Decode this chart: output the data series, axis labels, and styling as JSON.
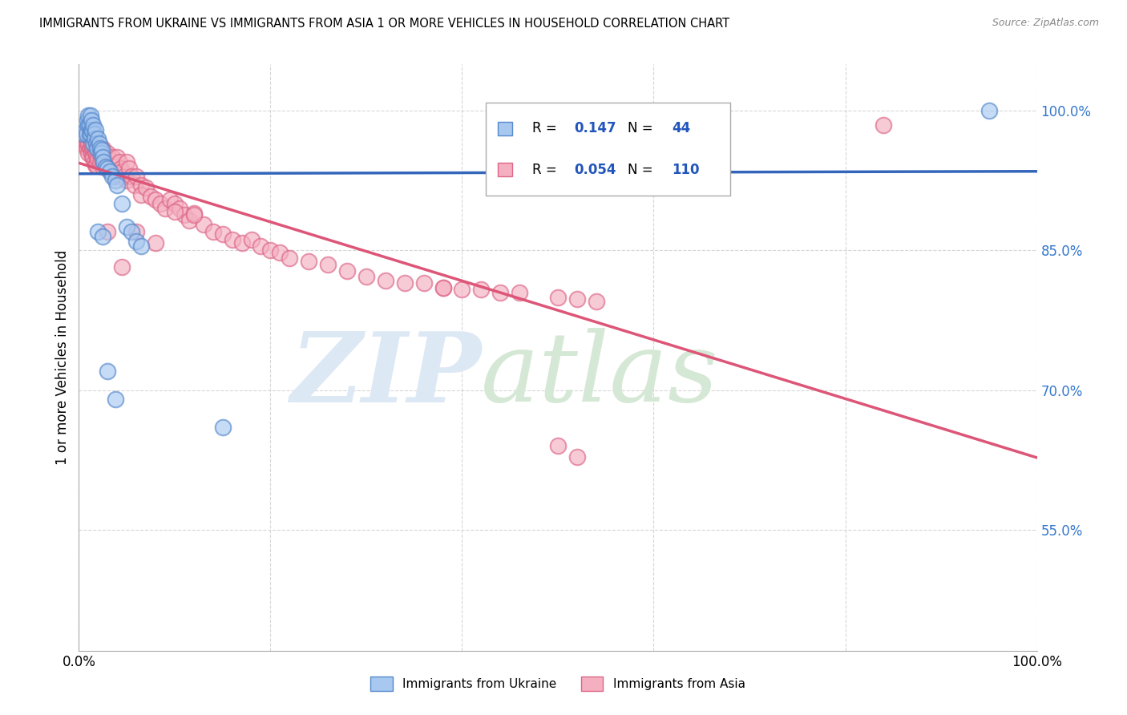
{
  "title": "IMMIGRANTS FROM UKRAINE VS IMMIGRANTS FROM ASIA 1 OR MORE VEHICLES IN HOUSEHOLD CORRELATION CHART",
  "source": "Source: ZipAtlas.com",
  "ylabel": "1 or more Vehicles in Household",
  "xlim": [
    0.0,
    1.0
  ],
  "ylim": [
    0.42,
    1.05
  ],
  "yticks": [
    0.55,
    0.7,
    0.85,
    1.0
  ],
  "ytick_labels": [
    "55.0%",
    "70.0%",
    "85.0%",
    "100.0%"
  ],
  "xticks": [
    0.0,
    0.2,
    0.4,
    0.6,
    0.8,
    1.0
  ],
  "xtick_labels": [
    "0.0%",
    "",
    "",
    "",
    "",
    "100.0%"
  ],
  "ukraine_R": 0.147,
  "ukraine_N": 44,
  "asia_R": 0.054,
  "asia_N": 110,
  "ukraine_color": "#a8c8f0",
  "asia_color": "#f4b0c0",
  "ukraine_edge_color": "#5588cc",
  "asia_edge_color": "#dd6688",
  "ukraine_line_color": "#3366bb",
  "asia_line_color": "#dd5577",
  "legend_ukraine": "Immigrants from Ukraine",
  "legend_asia": "Immigrants from Asia",
  "ukraine_x": [
    0.005,
    0.007,
    0.008,
    0.009,
    0.01,
    0.01,
    0.011,
    0.011,
    0.012,
    0.012,
    0.013,
    0.013,
    0.014,
    0.015,
    0.015,
    0.016,
    0.016,
    0.017,
    0.018,
    0.019,
    0.02,
    0.021,
    0.022,
    0.023,
    0.024,
    0.025,
    0.026,
    0.028,
    0.03,
    0.032,
    0.035,
    0.038,
    0.04,
    0.045,
    0.05,
    0.055,
    0.06,
    0.065,
    0.02,
    0.025,
    0.03,
    0.038,
    0.15,
    0.95
  ],
  "ukraine_y": [
    0.975,
    0.98,
    0.975,
    0.99,
    0.985,
    0.995,
    0.985,
    0.975,
    0.995,
    0.975,
    0.99,
    0.98,
    0.978,
    0.965,
    0.985,
    0.975,
    0.97,
    0.98,
    0.965,
    0.96,
    0.97,
    0.965,
    0.96,
    0.955,
    0.958,
    0.95,
    0.945,
    0.94,
    0.938,
    0.935,
    0.93,
    0.925,
    0.92,
    0.9,
    0.875,
    0.87,
    0.86,
    0.855,
    0.87,
    0.865,
    0.72,
    0.69,
    0.66,
    1.0
  ],
  "asia_x": [
    0.003,
    0.004,
    0.005,
    0.005,
    0.006,
    0.007,
    0.007,
    0.008,
    0.008,
    0.009,
    0.01,
    0.01,
    0.01,
    0.011,
    0.011,
    0.012,
    0.012,
    0.013,
    0.013,
    0.014,
    0.014,
    0.015,
    0.015,
    0.016,
    0.016,
    0.017,
    0.017,
    0.018,
    0.018,
    0.019,
    0.02,
    0.02,
    0.021,
    0.022,
    0.022,
    0.023,
    0.024,
    0.025,
    0.025,
    0.026,
    0.027,
    0.028,
    0.03,
    0.03,
    0.032,
    0.033,
    0.035,
    0.035,
    0.037,
    0.038,
    0.04,
    0.04,
    0.042,
    0.044,
    0.045,
    0.047,
    0.05,
    0.05,
    0.052,
    0.055,
    0.058,
    0.06,
    0.065,
    0.065,
    0.07,
    0.075,
    0.08,
    0.085,
    0.09,
    0.095,
    0.1,
    0.105,
    0.11,
    0.115,
    0.12,
    0.13,
    0.14,
    0.15,
    0.16,
    0.17,
    0.18,
    0.19,
    0.2,
    0.21,
    0.22,
    0.24,
    0.26,
    0.28,
    0.3,
    0.32,
    0.34,
    0.36,
    0.38,
    0.4,
    0.42,
    0.44,
    0.46,
    0.5,
    0.52,
    0.54,
    0.03,
    0.045,
    0.06,
    0.08,
    0.1,
    0.12,
    0.5,
    0.52,
    0.38,
    0.84
  ],
  "asia_y": [
    0.97,
    0.975,
    0.965,
    0.975,
    0.97,
    0.965,
    0.975,
    0.96,
    0.97,
    0.965,
    0.975,
    0.965,
    0.955,
    0.97,
    0.96,
    0.975,
    0.96,
    0.965,
    0.955,
    0.96,
    0.95,
    0.96,
    0.95,
    0.958,
    0.945,
    0.955,
    0.942,
    0.955,
    0.942,
    0.95,
    0.96,
    0.948,
    0.955,
    0.96,
    0.945,
    0.955,
    0.948,
    0.96,
    0.94,
    0.95,
    0.945,
    0.94,
    0.955,
    0.94,
    0.948,
    0.935,
    0.95,
    0.935,
    0.94,
    0.93,
    0.95,
    0.932,
    0.945,
    0.938,
    0.935,
    0.93,
    0.945,
    0.925,
    0.938,
    0.93,
    0.92,
    0.93,
    0.92,
    0.91,
    0.918,
    0.908,
    0.905,
    0.9,
    0.895,
    0.905,
    0.9,
    0.895,
    0.888,
    0.882,
    0.89,
    0.878,
    0.87,
    0.868,
    0.862,
    0.858,
    0.862,
    0.855,
    0.85,
    0.848,
    0.842,
    0.838,
    0.835,
    0.828,
    0.822,
    0.818,
    0.815,
    0.815,
    0.81,
    0.808,
    0.808,
    0.805,
    0.805,
    0.8,
    0.798,
    0.795,
    0.87,
    0.832,
    0.87,
    0.858,
    0.892,
    0.888,
    0.64,
    0.628,
    0.81,
    0.985
  ]
}
